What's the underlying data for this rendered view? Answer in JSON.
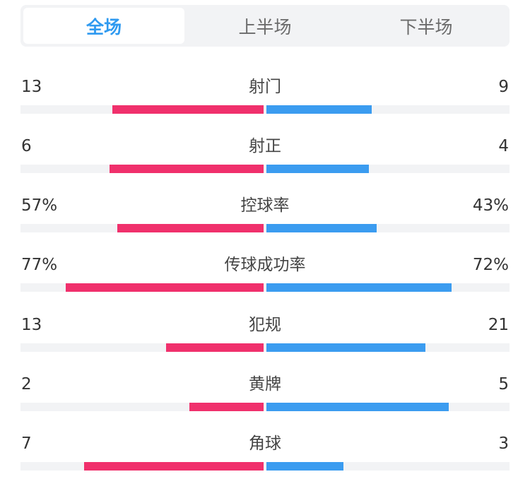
{
  "tabs": [
    {
      "label": "全场",
      "active": true
    },
    {
      "label": "上半场",
      "active": false
    },
    {
      "label": "下半场",
      "active": false
    }
  ],
  "colors": {
    "home_bar": "#f0306c",
    "away_bar": "#3b9cf0",
    "active_tab": "#2f9af0",
    "track": "#f2f3f5"
  },
  "stats": [
    {
      "label": "射门",
      "home": "13",
      "away": "9",
      "home_share": 0.59,
      "away_share": 0.41
    },
    {
      "label": "射正",
      "home": "6",
      "away": "4",
      "home_share": 0.6,
      "away_share": 0.4
    },
    {
      "label": "控球率",
      "home": "57%",
      "away": "43%",
      "home_share": 0.57,
      "away_share": 0.43
    },
    {
      "label": "传球成功率",
      "home": "77%",
      "away": "72%",
      "home_share": 0.77,
      "away_share": 0.72
    },
    {
      "label": "犯规",
      "home": "13",
      "away": "21",
      "home_share": 0.38,
      "away_share": 0.62
    },
    {
      "label": "黄牌",
      "home": "2",
      "away": "5",
      "home_share": 0.29,
      "away_share": 0.71
    },
    {
      "label": "角球",
      "home": "7",
      "away": "3",
      "home_share": 0.7,
      "away_share": 0.3
    }
  ]
}
